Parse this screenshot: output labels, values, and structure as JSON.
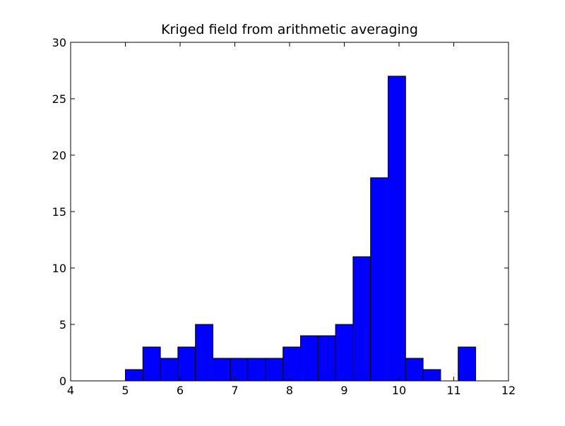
{
  "chart_data": {
    "type": "bar",
    "title": "Kriged field from arithmetic averaging",
    "xlabel": "",
    "ylabel": "",
    "xlim": [
      4,
      12
    ],
    "ylim": [
      0,
      30
    ],
    "xticks": [
      4,
      5,
      6,
      7,
      8,
      9,
      10,
      11,
      12
    ],
    "yticks": [
      0,
      5,
      10,
      15,
      20,
      25,
      30
    ],
    "x_tick_labels": [
      "4",
      "5",
      "6",
      "7",
      "8",
      "9",
      "10",
      "11",
      "12"
    ],
    "y_tick_labels": [
      "0",
      "5",
      "10",
      "15",
      "20",
      "25",
      "30"
    ],
    "bins": [
      {
        "x0": 5.0,
        "x1": 5.32,
        "count": 1
      },
      {
        "x0": 5.32,
        "x1": 5.64,
        "count": 3
      },
      {
        "x0": 5.64,
        "x1": 5.96,
        "count": 2
      },
      {
        "x0": 5.96,
        "x1": 6.28,
        "count": 3
      },
      {
        "x0": 6.28,
        "x1": 6.6,
        "count": 5
      },
      {
        "x0": 6.6,
        "x1": 6.92,
        "count": 2
      },
      {
        "x0": 6.92,
        "x1": 7.24,
        "count": 2
      },
      {
        "x0": 7.24,
        "x1": 7.56,
        "count": 2
      },
      {
        "x0": 7.56,
        "x1": 7.88,
        "count": 2
      },
      {
        "x0": 7.88,
        "x1": 8.2,
        "count": 3
      },
      {
        "x0": 8.2,
        "x1": 8.52,
        "count": 4
      },
      {
        "x0": 8.52,
        "x1": 8.84,
        "count": 4
      },
      {
        "x0": 8.84,
        "x1": 9.16,
        "count": 5
      },
      {
        "x0": 9.16,
        "x1": 9.48,
        "count": 11
      },
      {
        "x0": 9.48,
        "x1": 9.8,
        "count": 18
      },
      {
        "x0": 9.8,
        "x1": 10.12,
        "count": 27
      },
      {
        "x0": 10.12,
        "x1": 10.44,
        "count": 2
      },
      {
        "x0": 10.44,
        "x1": 10.76,
        "count": 1
      },
      {
        "x0": 10.76,
        "x1": 11.08,
        "count": 0
      },
      {
        "x0": 11.08,
        "x1": 11.4,
        "count": 3
      }
    ],
    "bar_color": "#0000ff",
    "edge_color": "#000000",
    "grid": false,
    "legend": false
  }
}
